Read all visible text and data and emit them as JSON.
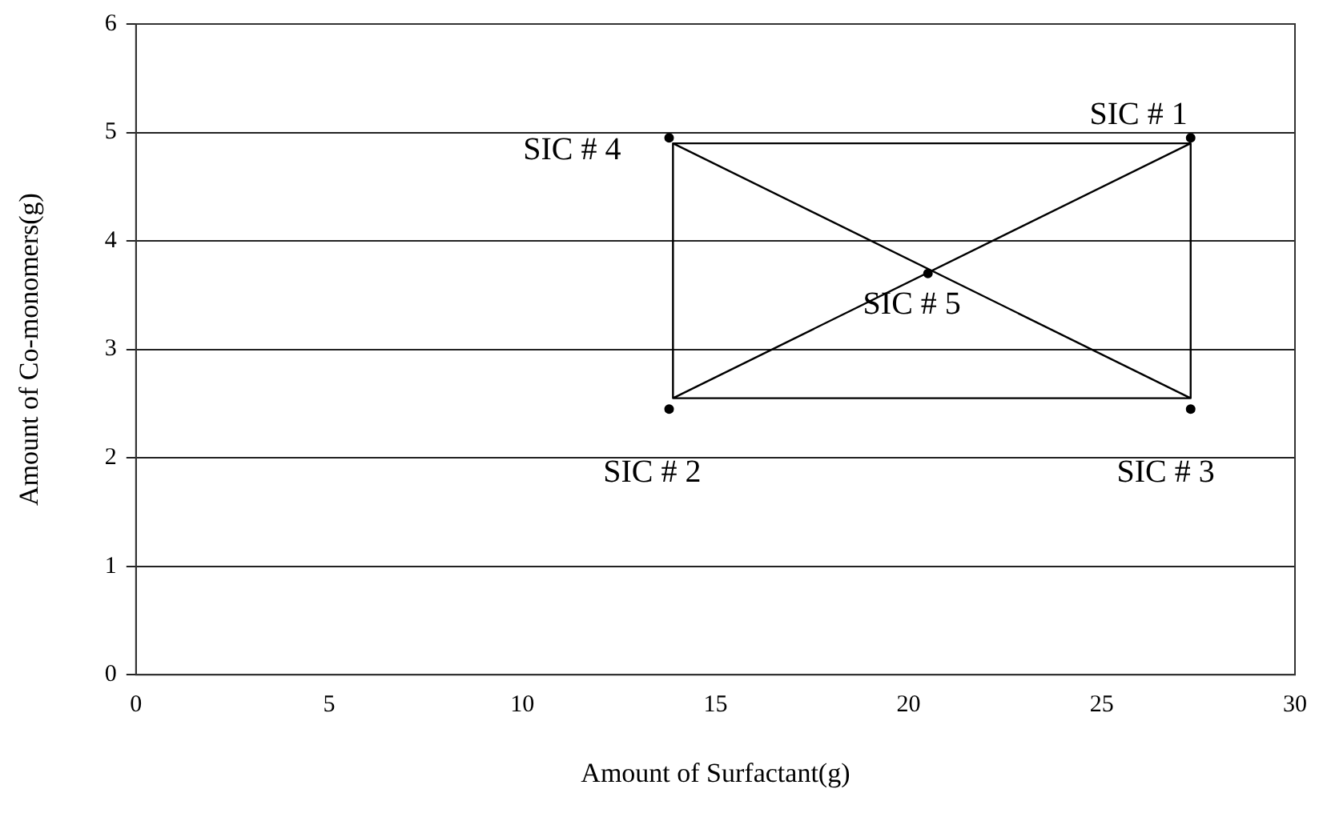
{
  "chart_data": {
    "type": "scatter",
    "xlabel": "Amount of Surfactant(g)",
    "ylabel": "Amount of Co-monomers(g)",
    "xlim": [
      0,
      30
    ],
    "xticks": [
      0,
      5,
      10,
      15,
      20,
      25,
      30
    ],
    "ylim": [
      0,
      6
    ],
    "yticks": [
      0,
      1,
      2,
      3,
      4,
      5,
      6
    ],
    "grid": "y",
    "legend": false,
    "series": [
      {
        "type": "line",
        "color": "#000000",
        "marker": "none",
        "x": [
          13.9,
          27.3,
          27.3,
          13.9,
          13.9,
          27.3,
          20.6,
          13.9,
          27.3
        ],
        "values": [
          4.9,
          4.9,
          2.55,
          2.55,
          4.9,
          2.55,
          null,
          2.55,
          4.9
        ]
      },
      {
        "type": "scatter",
        "color": "#000000",
        "marker": "circle",
        "x": [
          27.3,
          13.8,
          27.3,
          13.8,
          20.5
        ],
        "values": [
          4.95,
          2.45,
          2.45,
          4.95,
          3.7
        ]
      }
    ],
    "annotations": [
      {
        "text": "SIC # 1",
        "x": 27.3,
        "y": 4.95
      },
      {
        "text": "SIC # 2",
        "x": 13.8,
        "y": 2.45
      },
      {
        "text": "SIC # 3",
        "x": 27.3,
        "y": 2.45
      },
      {
        "text": "SIC # 4",
        "x": 13.8,
        "y": 4.95
      },
      {
        "text": "SIC # 5",
        "x": 20.5,
        "y": 3.7
      }
    ]
  }
}
